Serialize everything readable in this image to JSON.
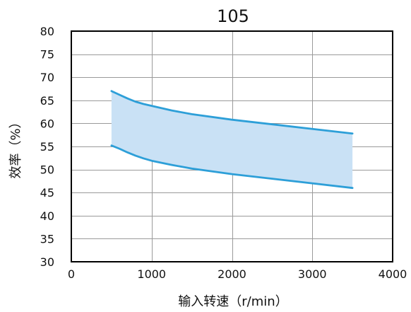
{
  "chart_data": {
    "type": "area",
    "title": "105",
    "xlabel": "输入转速（r/min）",
    "ylabel": "效率（%）",
    "xlim": [
      0,
      4000
    ],
    "ylim": [
      30,
      80
    ],
    "xticks": [
      0,
      1000,
      2000,
      3000,
      4000
    ],
    "yticks": [
      30,
      35,
      40,
      45,
      50,
      55,
      60,
      65,
      70,
      75,
      80
    ],
    "grid": true,
    "series": [
      {
        "x": [
          500,
          600,
          700,
          800,
          900,
          1000,
          1250,
          1500,
          2000,
          2500,
          3000,
          3500
        ],
        "values": [
          67.0,
          66.2,
          65.4,
          64.7,
          64.2,
          63.8,
          62.8,
          62.0,
          60.8,
          59.8,
          58.8,
          57.8
        ]
      },
      {
        "x": [
          500,
          600,
          700,
          800,
          900,
          1000,
          1250,
          1500,
          2000,
          2500,
          3000,
          3500
        ],
        "values": [
          55.2,
          54.5,
          53.7,
          53.0,
          52.4,
          51.9,
          51.0,
          50.2,
          49.0,
          48.0,
          47.0,
          46.0
        ]
      }
    ],
    "band_color": "#c9e1f5",
    "line_color": "#2d9fd8",
    "frame_color": "#000000",
    "grid_color": "#9a9a9a"
  }
}
